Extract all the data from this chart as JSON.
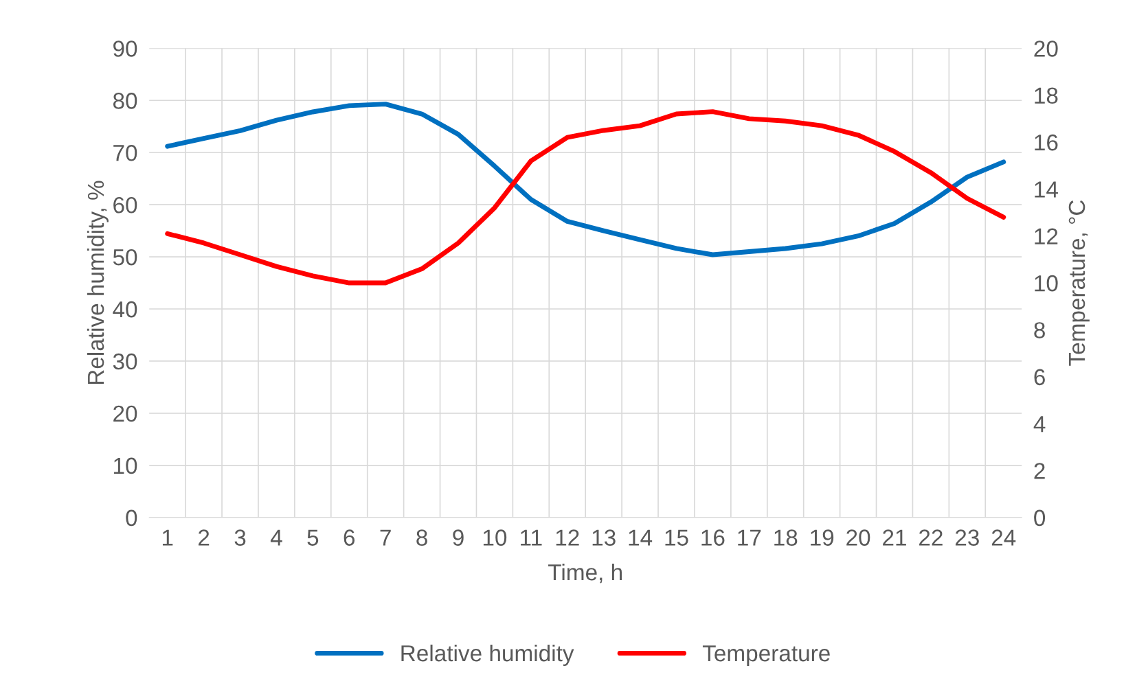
{
  "chart_data": {
    "type": "line",
    "xlabel": "Time, h",
    "ylabel": "Relative humidity, %",
    "y2label": "Temperature, °C",
    "categories": [
      "1",
      "2",
      "3",
      "4",
      "5",
      "6",
      "7",
      "8",
      "9",
      "10",
      "11",
      "12",
      "13",
      "14",
      "15",
      "16",
      "17",
      "18",
      "19",
      "20",
      "21",
      "22",
      "23",
      "24"
    ],
    "series": [
      {
        "name": "Relative humidity",
        "color": "#0070c0",
        "values": [
          71.2,
          72.7,
          74.2,
          76.2,
          77.8,
          79.0,
          79.3,
          77.4,
          73.5,
          67.4,
          61.0,
          56.8,
          55.0,
          53.3,
          51.6,
          50.4,
          51.0,
          51.6,
          52.5,
          54.0,
          56.4,
          60.5,
          65.3,
          68.2
        ]
      },
      {
        "name": "Temperature",
        "color": "#ff0000",
        "axis": "y2",
        "values": [
          12.1,
          11.7,
          11.2,
          10.7,
          10.3,
          10.0,
          10.0,
          10.6,
          11.7,
          13.2,
          15.2,
          16.2,
          16.5,
          16.7,
          17.2,
          17.3,
          17.0,
          16.9,
          16.7,
          16.3,
          15.6,
          14.7,
          13.6,
          12.8
        ]
      }
    ],
    "ylim": [
      0,
      90
    ],
    "yticks": [
      0,
      10,
      20,
      30,
      40,
      50,
      60,
      70,
      80,
      90
    ],
    "y2lim": [
      0,
      20
    ],
    "y2ticks": [
      0,
      2,
      4,
      6,
      8,
      10,
      12,
      14,
      16,
      18,
      20
    ],
    "grid": true,
    "legend": "bottom",
    "marker": "none",
    "line_style": "solid"
  }
}
